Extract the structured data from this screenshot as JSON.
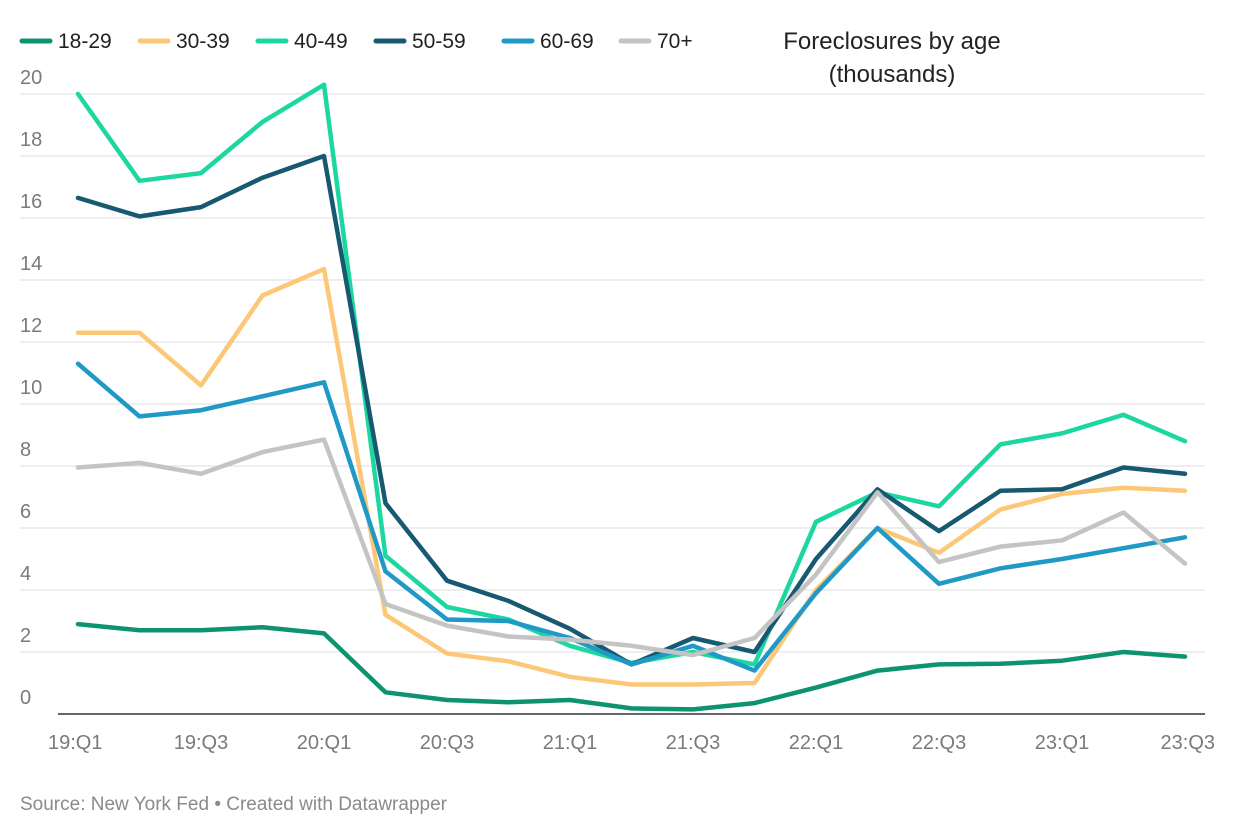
{
  "chart_data": {
    "type": "line",
    "title_lines": [
      "Foreclosures by age",
      "(thousands)"
    ],
    "xlabel": "",
    "ylabel": "",
    "ylim": [
      0,
      20
    ],
    "yticks": [
      0,
      2,
      4,
      6,
      8,
      10,
      12,
      14,
      16,
      18,
      20
    ],
    "grid": true,
    "legend_position": "top-left",
    "x": [
      "19:Q1",
      "19:Q2",
      "19:Q3",
      "19:Q4",
      "20:Q1",
      "20:Q2",
      "20:Q3",
      "20:Q4",
      "21:Q1",
      "21:Q2",
      "21:Q3",
      "21:Q4",
      "22:Q1",
      "22:Q2",
      "22:Q3",
      "22:Q4",
      "23:Q1",
      "23:Q2",
      "23:Q3"
    ],
    "x_tick_labels": [
      "19:Q1",
      "19:Q3",
      "20:Q1",
      "20:Q3",
      "21:Q1",
      "21:Q3",
      "22:Q1",
      "22:Q3",
      "23:Q1",
      "23:Q3"
    ],
    "series": [
      {
        "name": "18-29",
        "color": "#0d9370",
        "values": [
          2.9,
          2.7,
          2.7,
          2.8,
          2.6,
          0.7,
          0.45,
          0.38,
          0.45,
          0.18,
          0.15,
          0.35,
          0.85,
          1.4,
          1.6,
          1.62,
          1.72,
          2.0,
          1.85
        ]
      },
      {
        "name": "30-39",
        "color": "#fcc877",
        "values": [
          12.3,
          12.3,
          10.6,
          13.5,
          14.35,
          3.2,
          1.95,
          1.7,
          1.2,
          0.95,
          0.95,
          1.0,
          4.0,
          6.0,
          5.2,
          6.6,
          7.1,
          7.3,
          7.2
        ]
      },
      {
        "name": "40-49",
        "color": "#1cd8a0",
        "values": [
          20.0,
          17.2,
          17.45,
          19.1,
          20.3,
          5.1,
          3.45,
          3.05,
          2.2,
          1.65,
          2.0,
          1.6,
          6.2,
          7.15,
          6.7,
          8.7,
          9.05,
          9.65,
          8.8
        ]
      },
      {
        "name": "50-59",
        "color": "#175970",
        "values": [
          16.65,
          16.05,
          16.35,
          17.3,
          18.0,
          6.8,
          4.3,
          3.65,
          2.75,
          1.6,
          2.45,
          2.0,
          5.0,
          7.25,
          5.9,
          7.2,
          7.25,
          7.95,
          7.75
        ]
      },
      {
        "name": "60-69",
        "color": "#2099c7",
        "values": [
          11.3,
          9.6,
          9.8,
          10.25,
          10.7,
          4.6,
          3.05,
          3.0,
          2.45,
          1.6,
          2.2,
          1.4,
          3.9,
          6.0,
          4.2,
          4.7,
          5.0,
          5.35,
          5.7
        ]
      },
      {
        "name": "70+",
        "color": "#c4c4c4",
        "values": [
          7.95,
          8.1,
          7.75,
          8.45,
          8.85,
          3.55,
          2.85,
          2.5,
          2.4,
          2.2,
          1.9,
          2.45,
          4.5,
          7.15,
          4.9,
          5.4,
          5.6,
          6.5,
          4.85
        ]
      }
    ]
  },
  "footer": {
    "source": "Source: New York Fed • Created with Datawrapper"
  }
}
